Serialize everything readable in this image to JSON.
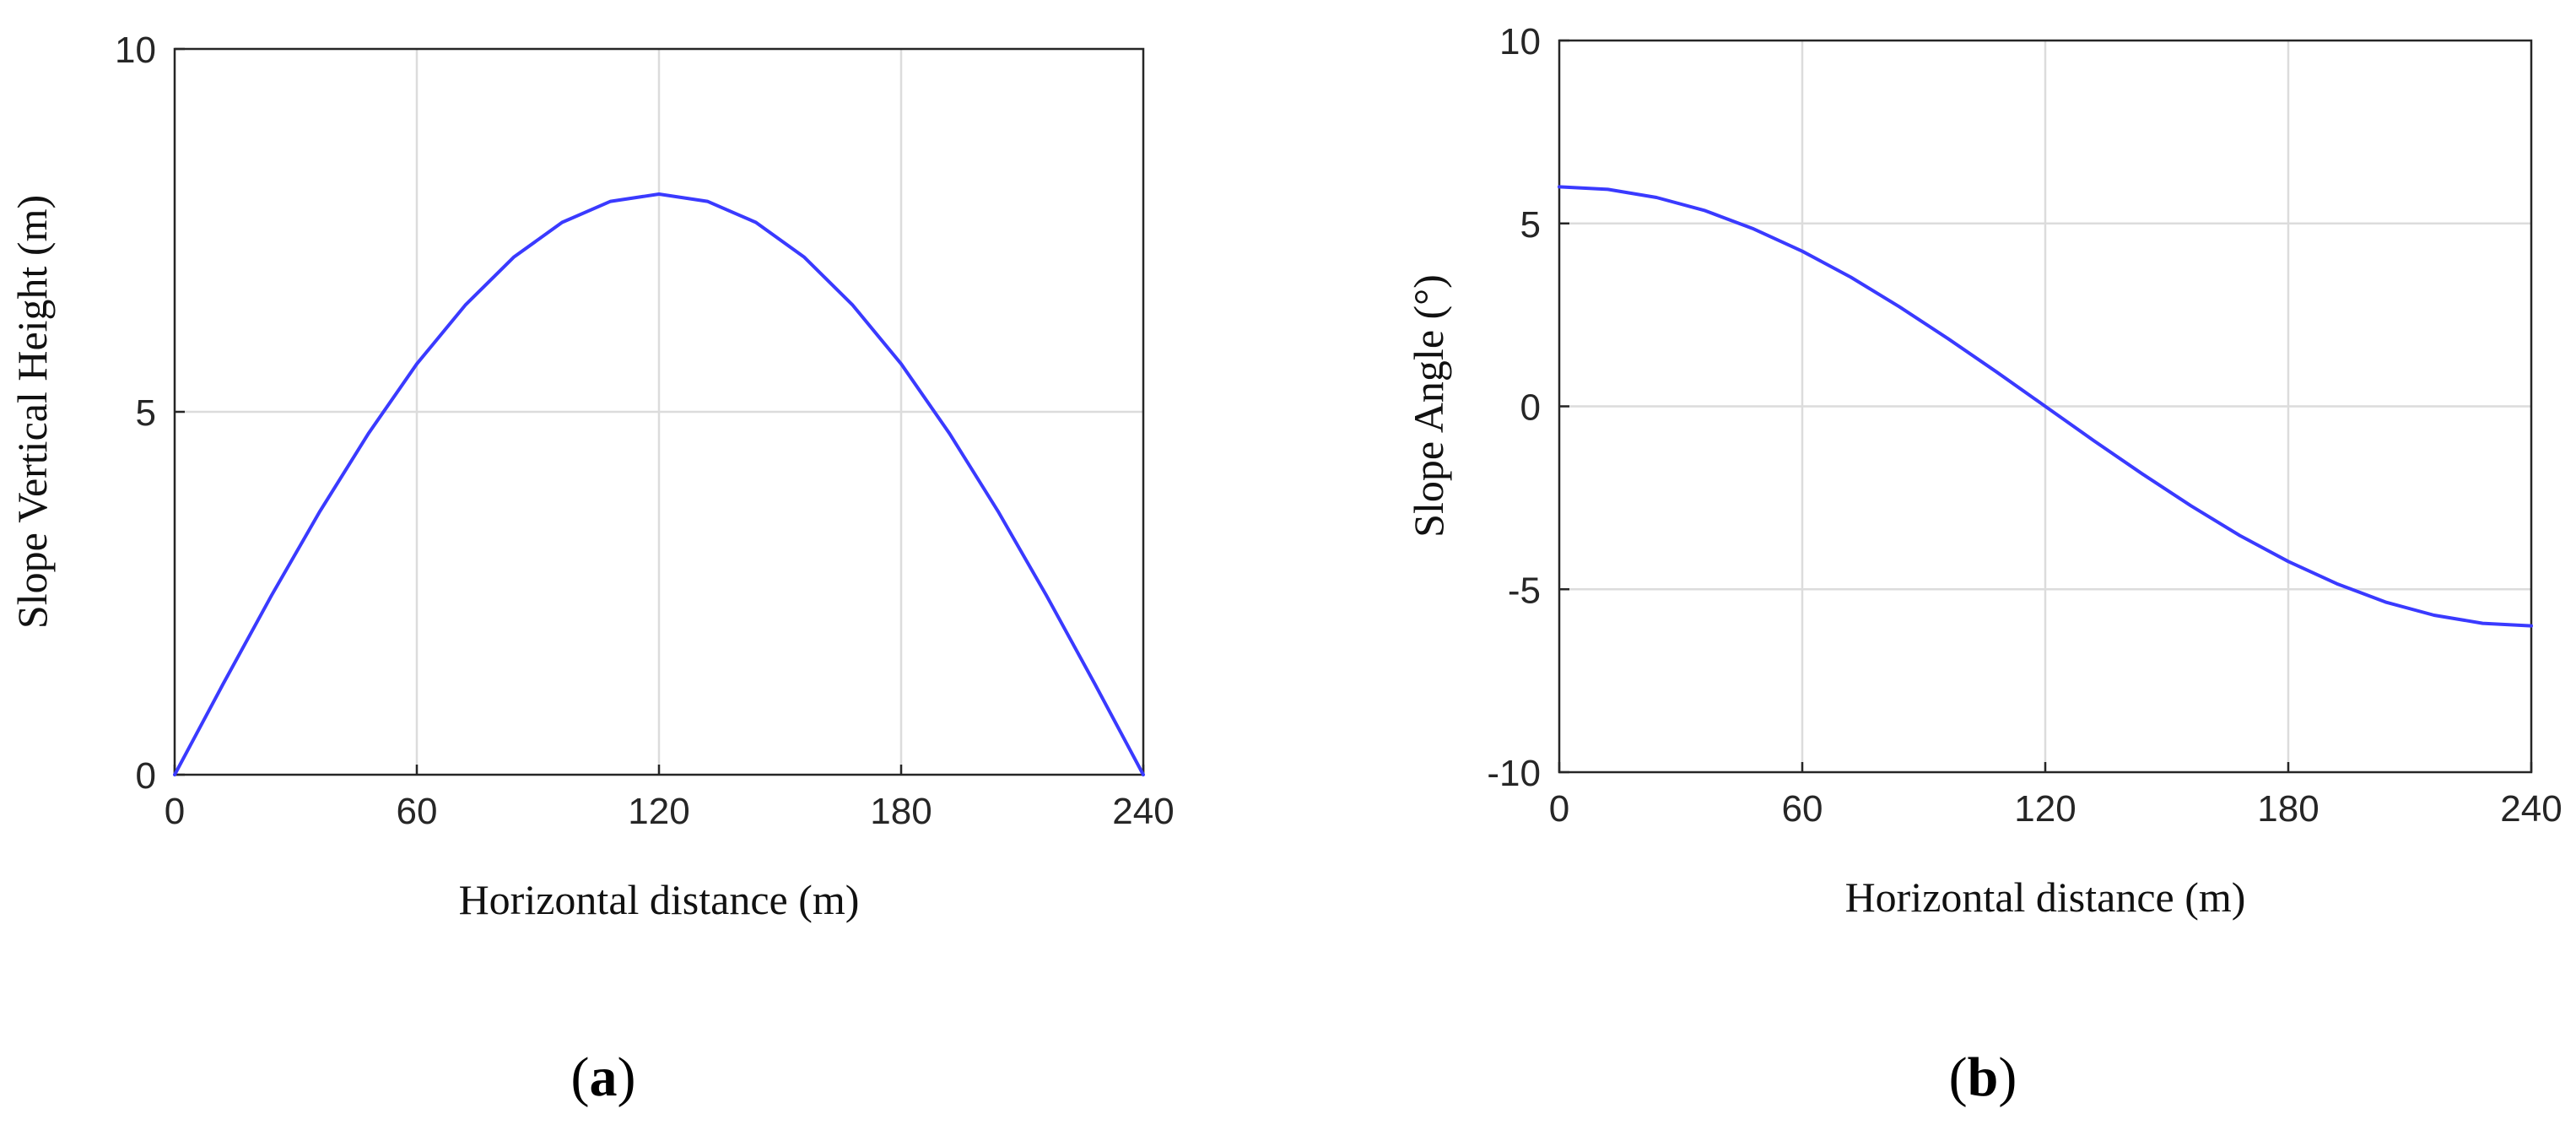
{
  "colors": {
    "series": "#3a3aff",
    "grid": "#dcdcdc",
    "axis": "#262626"
  },
  "panels": [
    {
      "label_open": "(",
      "label_letter": "a",
      "label_close": ")"
    },
    {
      "label_open": "(",
      "label_letter": "b",
      "label_close": ")"
    }
  ],
  "chart_data": [
    {
      "type": "line",
      "xlabel": "Horizontal distance (m)",
      "ylabel": "Slope Vertical Height (m)",
      "xlim": [
        0,
        240
      ],
      "ylim": [
        0,
        10
      ],
      "xticks": [
        0,
        60,
        120,
        180,
        240
      ],
      "yticks": [
        0,
        5,
        10
      ],
      "grid": true,
      "series": [
        {
          "x": [
            0,
            12,
            24,
            36,
            48,
            60,
            72,
            84,
            96,
            108,
            120,
            132,
            144,
            156,
            168,
            180,
            192,
            204,
            216,
            228,
            240
          ],
          "y": [
            0,
            1.25,
            2.47,
            3.63,
            4.7,
            5.66,
            6.47,
            7.13,
            7.61,
            7.9,
            8.0,
            7.9,
            7.61,
            7.13,
            6.47,
            5.66,
            4.7,
            3.63,
            2.47,
            1.25,
            0
          ]
        }
      ]
    },
    {
      "type": "line",
      "xlabel": "Horizontal distance (m)",
      "ylabel": "Slope Angle (°)",
      "xlim": [
        0,
        240
      ],
      "ylim": [
        -10,
        10
      ],
      "xticks": [
        0,
        60,
        120,
        180,
        240
      ],
      "yticks": [
        -10,
        -5,
        0,
        5,
        10
      ],
      "grid": true,
      "series": [
        {
          "x": [
            0,
            12,
            24,
            36,
            48,
            60,
            72,
            84,
            96,
            108,
            120,
            132,
            144,
            156,
            168,
            180,
            192,
            204,
            216,
            228,
            240
          ],
          "y": [
            6.0,
            5.93,
            5.71,
            5.35,
            4.85,
            4.24,
            3.53,
            2.72,
            1.85,
            0.94,
            0,
            -0.94,
            -1.85,
            -2.72,
            -3.53,
            -4.24,
            -4.85,
            -5.35,
            -5.71,
            -5.93,
            -6.0
          ]
        }
      ]
    }
  ]
}
